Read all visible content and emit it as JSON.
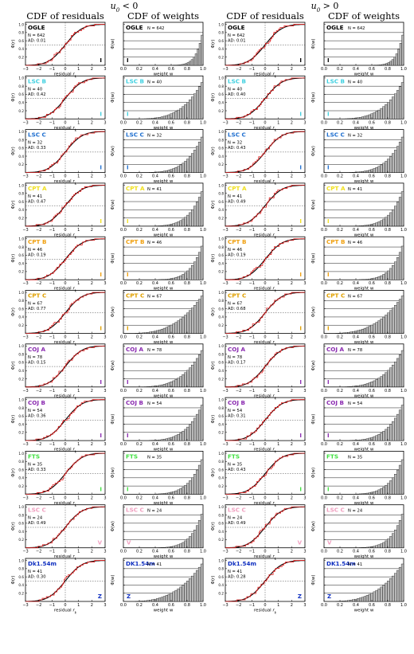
{
  "group_titles": [
    {
      "base": "u",
      "sub": "0",
      "rel": " < 0"
    },
    {
      "base": "u",
      "sub": "0",
      "rel": " > 0"
    }
  ],
  "column_titles": [
    "CDF of residuals",
    "CDF of weights",
    "CDF of residuals",
    "CDF of weights"
  ],
  "residual_axis": {
    "xlabel_base": "residual ",
    "xlabel_sub": "r",
    "xlabel_subsub": "k",
    "ylabel": "Φ(r)",
    "xticks": [
      "−3",
      "−2",
      "−1",
      "0",
      "1",
      "2",
      "3"
    ],
    "yticks": [
      "0.2",
      "0.4",
      "0.6",
      "0.8",
      "1.0"
    ],
    "xlim": [
      -3,
      3
    ],
    "ylim": [
      0,
      1.05
    ]
  },
  "weight_axis": {
    "xlabel": "weight w",
    "ylabel": "Φ(w)",
    "xticks": [
      "0.0",
      "0.2",
      "0.4",
      "0.6",
      "0.8",
      "1.0"
    ],
    "yticks": [
      "0.2",
      "0.4",
      "0.6",
      "0.8",
      "1.0"
    ],
    "xlim": [
      0,
      1
    ],
    "ylim": [
      0,
      1.05
    ]
  },
  "chart_data": {
    "type": "line",
    "description_series": [
      "empirical CDF (red)",
      "model CDF (black)"
    ],
    "datasets": [
      {
        "name": "OGLE",
        "color": "#000000",
        "band": "I",
        "n_label": "N = 642",
        "ad_neg": "AD: 0.01",
        "ad_pos": "AD: 0.01"
      },
      {
        "name": "LSC B",
        "color": "#3fd0e0",
        "band": "I",
        "n_label": "N = 40",
        "ad_neg": "AD: 0.42",
        "ad_pos": "AD: 0.40"
      },
      {
        "name": "LSC C",
        "color": "#1f6fd0",
        "band": "I",
        "n_label": "N = 32",
        "ad_neg": "AD: 0.33",
        "ad_pos": "AD: 0.43"
      },
      {
        "name": "CPT A",
        "color": "#f0e020",
        "band": "I",
        "n_label": "N = 41",
        "ad_neg": "AD: 0.47",
        "ad_pos": "AD: 0.49"
      },
      {
        "name": "CPT B",
        "color": "#f0a010",
        "band": "I",
        "n_label": "N = 46",
        "ad_neg": "AD: 0.19",
        "ad_pos": "AD: 0.19"
      },
      {
        "name": "CPT C",
        "color": "#e0a000",
        "band": "I",
        "n_label": "N = 67",
        "ad_neg": "AD: 0.77",
        "ad_pos": "AD: 0.68"
      },
      {
        "name": "COJ A",
        "color": "#8a2ab0",
        "band": "I",
        "n_label": "N = 78",
        "ad_neg": "AD: 0.15",
        "ad_pos": "AD: 0.17"
      },
      {
        "name": "COJ B",
        "color": "#8a2ab0",
        "band": "I",
        "n_label": "N = 54",
        "ad_neg": "AD: 0.36",
        "ad_pos": "AD: 0.31"
      },
      {
        "name": "FTS",
        "color": "#40e040",
        "band": "I",
        "n_label": "N = 35",
        "ad_neg": "AD: 0.33",
        "ad_pos": "AD: 0.43"
      },
      {
        "name": "LSC C",
        "color": "#f0a0c0",
        "band": "V",
        "n_label": "N = 24",
        "ad_neg": "AD: 0.49",
        "ad_pos": "AD: 0.49"
      },
      {
        "name": "Dk1.54m",
        "color": "#1030c0",
        "band": "Z",
        "n_label": "N = 41",
        "ad_neg": "AD: 0.30",
        "ad_pos": "AD: 0.28"
      }
    ],
    "weight_panel_names": [
      "OGLE",
      "LSC B",
      "LSC C",
      "CPT A",
      "CPT B",
      "CPT C",
      "COJ A",
      "COJ B",
      "FTS",
      "LSC C",
      "DK1.54m"
    ]
  }
}
